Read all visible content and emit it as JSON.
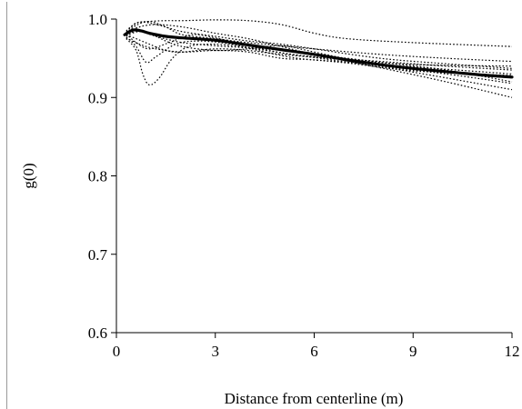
{
  "chart_data": {
    "type": "line",
    "title": "",
    "xlabel": "Distance from centerline (m)",
    "ylabel": "g(0)",
    "xlim": [
      0,
      12
    ],
    "ylim": [
      0.6,
      1.0
    ],
    "x_ticks": [
      0,
      3,
      6,
      9,
      12
    ],
    "x_tick_labels": [
      "0",
      "3",
      "6",
      "9",
      "12"
    ],
    "y_ticks": [
      0.6,
      0.7,
      0.8,
      0.9,
      1.0
    ],
    "y_tick_labels": [
      "0.6",
      "0.7",
      "0.8",
      "0.9",
      "1.0"
    ],
    "grid": false,
    "legend": "none",
    "series": [
      {
        "style": "solid-bold",
        "color": "#000000",
        "points": [
          [
            0.25,
            0.98
          ],
          [
            0.5,
            0.986
          ],
          [
            0.75,
            0.985
          ],
          [
            1.0,
            0.982
          ],
          [
            1.5,
            0.978
          ],
          [
            2.0,
            0.976
          ],
          [
            3.0,
            0.973
          ],
          [
            4.0,
            0.967
          ],
          [
            5.0,
            0.961
          ],
          [
            6.0,
            0.955
          ],
          [
            7.0,
            0.948
          ],
          [
            8.0,
            0.942
          ],
          [
            9.0,
            0.937
          ],
          [
            10.0,
            0.933
          ],
          [
            11.0,
            0.929
          ],
          [
            12.0,
            0.926
          ]
        ]
      },
      {
        "style": "dotted",
        "color": "#000000",
        "points": [
          [
            0.3,
            0.975
          ],
          [
            0.6,
            0.96
          ],
          [
            0.8,
            0.93
          ],
          [
            1.0,
            0.916
          ],
          [
            1.3,
            0.925
          ],
          [
            1.7,
            0.95
          ],
          [
            2.2,
            0.965
          ],
          [
            3.0,
            0.968
          ],
          [
            4.0,
            0.964
          ],
          [
            5.0,
            0.96
          ],
          [
            6.0,
            0.955
          ],
          [
            8.0,
            0.945
          ],
          [
            10.0,
            0.935
          ],
          [
            12.0,
            0.92
          ]
        ]
      },
      {
        "style": "dotted",
        "color": "#000000",
        "points": [
          [
            0.3,
            0.985
          ],
          [
            0.6,
            0.995
          ],
          [
            1.0,
            0.997
          ],
          [
            1.5,
            0.998
          ],
          [
            2.0,
            0.998
          ],
          [
            3.0,
            0.999
          ],
          [
            4.0,
            0.998
          ],
          [
            5.0,
            0.993
          ],
          [
            6.0,
            0.982
          ],
          [
            7.0,
            0.975
          ],
          [
            9.0,
            0.97
          ],
          [
            12.0,
            0.965
          ]
        ]
      },
      {
        "style": "dotted",
        "color": "#000000",
        "points": [
          [
            0.3,
            0.982
          ],
          [
            0.6,
            0.992
          ],
          [
            1.0,
            0.997
          ],
          [
            1.5,
            0.99
          ],
          [
            2.0,
            0.98
          ],
          [
            3.0,
            0.975
          ],
          [
            4.0,
            0.97
          ],
          [
            6.0,
            0.962
          ],
          [
            8.0,
            0.955
          ],
          [
            10.0,
            0.95
          ],
          [
            12.0,
            0.946
          ]
        ]
      },
      {
        "style": "dotted",
        "color": "#000000",
        "points": [
          [
            0.3,
            0.98
          ],
          [
            0.6,
            0.975
          ],
          [
            1.0,
            0.968
          ],
          [
            1.5,
            0.96
          ],
          [
            2.0,
            0.958
          ],
          [
            3.0,
            0.962
          ],
          [
            4.0,
            0.96
          ],
          [
            5.0,
            0.955
          ],
          [
            7.0,
            0.948
          ],
          [
            9.0,
            0.942
          ],
          [
            12.0,
            0.94
          ]
        ]
      },
      {
        "style": "dotted",
        "color": "#000000",
        "points": [
          [
            0.3,
            0.978
          ],
          [
            0.6,
            0.985
          ],
          [
            1.0,
            0.982
          ],
          [
            1.5,
            0.972
          ],
          [
            2.0,
            0.965
          ],
          [
            3.0,
            0.96
          ],
          [
            4.0,
            0.962
          ],
          [
            5.0,
            0.966
          ],
          [
            6.0,
            0.958
          ],
          [
            8.0,
            0.94
          ],
          [
            10.0,
            0.925
          ],
          [
            12.0,
            0.91
          ]
        ]
      },
      {
        "style": "dotted",
        "color": "#000000",
        "points": [
          [
            0.3,
            0.983
          ],
          [
            0.7,
            0.99
          ],
          [
            1.2,
            0.993
          ],
          [
            2.0,
            0.99
          ],
          [
            3.0,
            0.982
          ],
          [
            4.0,
            0.975
          ],
          [
            5.0,
            0.965
          ],
          [
            6.0,
            0.955
          ],
          [
            8.0,
            0.938
          ],
          [
            10.0,
            0.92
          ],
          [
            12.0,
            0.9
          ]
        ]
      },
      {
        "style": "dotted",
        "color": "#000000",
        "points": [
          [
            0.3,
            0.976
          ],
          [
            0.7,
            0.968
          ],
          [
            1.2,
            0.962
          ],
          [
            2.0,
            0.958
          ],
          [
            3.0,
            0.96
          ],
          [
            4.0,
            0.958
          ],
          [
            5.0,
            0.95
          ],
          [
            6.0,
            0.948
          ],
          [
            8.0,
            0.942
          ],
          [
            10.0,
            0.936
          ],
          [
            12.0,
            0.93
          ]
        ]
      },
      {
        "style": "dotted",
        "color": "#000000",
        "points": [
          [
            0.3,
            0.984
          ],
          [
            0.7,
            0.996
          ],
          [
            1.3,
            0.992
          ],
          [
            2.0,
            0.984
          ],
          [
            3.0,
            0.978
          ],
          [
            4.0,
            0.972
          ],
          [
            5.0,
            0.968
          ],
          [
            6.0,
            0.962
          ],
          [
            8.0,
            0.95
          ],
          [
            10.0,
            0.943
          ],
          [
            12.0,
            0.937
          ]
        ]
      },
      {
        "style": "dotted",
        "color": "#000000",
        "points": [
          [
            0.3,
            0.981
          ],
          [
            0.6,
            0.97
          ],
          [
            1.0,
            0.962
          ],
          [
            1.6,
            0.97
          ],
          [
            2.3,
            0.98
          ],
          [
            3.0,
            0.976
          ],
          [
            4.0,
            0.966
          ],
          [
            5.0,
            0.957
          ],
          [
            6.0,
            0.952
          ],
          [
            8.0,
            0.946
          ],
          [
            10.0,
            0.94
          ],
          [
            12.0,
            0.935
          ]
        ]
      },
      {
        "style": "dotted",
        "color": "#000000",
        "points": [
          [
            0.3,
            0.979
          ],
          [
            0.7,
            0.984
          ],
          [
            1.2,
            0.978
          ],
          [
            2.0,
            0.97
          ],
          [
            3.0,
            0.966
          ],
          [
            4.0,
            0.963
          ],
          [
            5.0,
            0.957
          ],
          [
            6.0,
            0.951
          ],
          [
            8.0,
            0.94
          ],
          [
            10.0,
            0.93
          ],
          [
            12.0,
            0.918
          ]
        ]
      },
      {
        "style": "dotted",
        "color": "#000000",
        "points": [
          [
            0.3,
            0.977
          ],
          [
            0.6,
            0.965
          ],
          [
            0.9,
            0.945
          ],
          [
            1.2,
            0.952
          ],
          [
            1.8,
            0.968
          ],
          [
            2.5,
            0.972
          ],
          [
            3.5,
            0.968
          ],
          [
            4.5,
            0.958
          ],
          [
            5.5,
            0.95
          ],
          [
            7.0,
            0.944
          ],
          [
            9.0,
            0.934
          ],
          [
            12.0,
            0.928
          ]
        ]
      }
    ]
  }
}
